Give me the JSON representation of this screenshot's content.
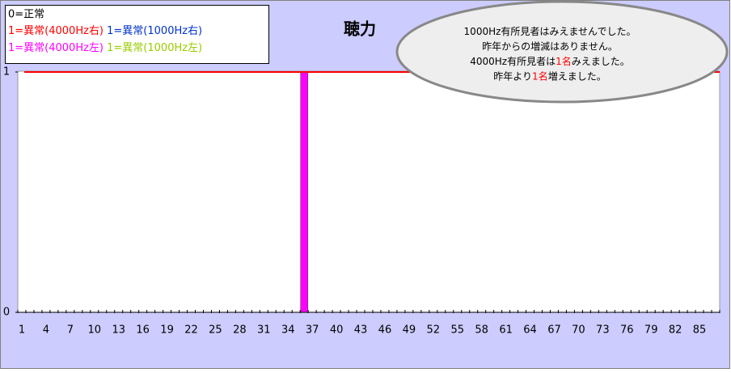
{
  "chart_data": {
    "type": "bar",
    "stacked": true,
    "title": "聴力",
    "legend_note": "0=正常",
    "categories": [
      1,
      null,
      null,
      4,
      null,
      null,
      7,
      null,
      null,
      10,
      null,
      null,
      13,
      null,
      null,
      16,
      null,
      null,
      19,
      null,
      null,
      22,
      null,
      null,
      25,
      null,
      null,
      28,
      null,
      null,
      31,
      null,
      null,
      34,
      null,
      null,
      37,
      null,
      null,
      40,
      null,
      null,
      43,
      null,
      null,
      46,
      null,
      null,
      49,
      null,
      null,
      52,
      null,
      null,
      55,
      null,
      null,
      58,
      null,
      null,
      61,
      null,
      null,
      64,
      null,
      null,
      67,
      null,
      null,
      70,
      null,
      null,
      73,
      null,
      null,
      76,
      null,
      null,
      79,
      null,
      null,
      82,
      null,
      null,
      85,
      null,
      null
    ],
    "series": [
      {
        "name": "1=異常(4000Hz右)",
        "color": "#ff0000",
        "values": [
          0,
          0,
          0,
          0,
          0,
          0,
          0,
          0,
          0,
          0,
          0,
          0,
          0,
          0,
          0,
          0,
          0,
          0,
          0,
          0,
          0,
          0,
          0,
          0,
          0,
          0,
          0,
          0,
          0,
          0,
          0,
          0,
          0,
          0,
          0,
          0,
          0,
          0,
          0,
          0,
          0,
          0,
          0,
          0,
          0,
          0,
          0,
          0,
          0,
          0,
          0,
          0,
          0,
          0,
          0,
          0,
          0,
          0,
          0,
          0,
          0,
          0,
          0,
          0,
          0,
          0,
          0,
          0,
          0,
          0,
          0,
          0,
          0,
          0,
          0,
          0,
          0,
          0,
          0,
          0,
          0,
          0,
          0,
          0,
          0,
          0,
          0
        ]
      },
      {
        "name": "1=異常(1000Hz右)",
        "color": "#0033cc",
        "values": [
          0,
          0,
          0,
          0,
          0,
          0,
          0,
          0,
          0,
          0,
          0,
          0,
          0,
          0,
          0,
          0,
          0,
          0,
          0,
          0,
          0,
          0,
          0,
          0,
          0,
          0,
          0,
          0,
          0,
          0,
          0,
          0,
          0,
          0,
          0,
          0,
          0,
          0,
          0,
          0,
          0,
          0,
          0,
          0,
          0,
          0,
          0,
          0,
          0,
          0,
          0,
          0,
          0,
          0,
          0,
          0,
          0,
          0,
          0,
          0,
          0,
          0,
          0,
          0,
          0,
          0,
          0,
          0,
          0,
          0,
          0,
          0,
          0,
          0,
          0,
          0,
          0,
          0,
          0,
          0,
          0,
          0,
          0,
          0,
          0,
          0,
          0
        ]
      },
      {
        "name": "1=異常(4000Hz左)",
        "color": "#ff00ff",
        "values": [
          0,
          0,
          0,
          0,
          0,
          0,
          0,
          0,
          0,
          0,
          0,
          0,
          0,
          0,
          0,
          0,
          0,
          0,
          0,
          0,
          0,
          0,
          0,
          0,
          0,
          0,
          0,
          0,
          0,
          0,
          0,
          0,
          0,
          0,
          0,
          1,
          0,
          0,
          0,
          0,
          0,
          0,
          0,
          0,
          0,
          0,
          0,
          0,
          0,
          0,
          0,
          0,
          0,
          0,
          0,
          0,
          0,
          0,
          0,
          0,
          0,
          0,
          0,
          0,
          0,
          0,
          0,
          0,
          0,
          0,
          0,
          0,
          0,
          0,
          0,
          0,
          0,
          0,
          0,
          0,
          0,
          0,
          0,
          0,
          0,
          0,
          0
        ]
      },
      {
        "name": "1=異常(1000Hz左)",
        "color": "#99cc00",
        "values": [
          0,
          0,
          0,
          0,
          0,
          0,
          0,
          0,
          0,
          0,
          0,
          0,
          0,
          0,
          0,
          0,
          0,
          0,
          0,
          0,
          0,
          0,
          0,
          0,
          0,
          0,
          0,
          0,
          0,
          0,
          0,
          0,
          0,
          0,
          0,
          0,
          0,
          0,
          0,
          0,
          0,
          0,
          0,
          0,
          0,
          0,
          0,
          0,
          0,
          0,
          0,
          0,
          0,
          0,
          0,
          0,
          0,
          0,
          0,
          0,
          0,
          0,
          0,
          0,
          0,
          0,
          0,
          0,
          0,
          0,
          0,
          0,
          0,
          0,
          0,
          0,
          0,
          0,
          0,
          0,
          0,
          0,
          0,
          0,
          0,
          0,
          0
        ]
      }
    ],
    "ylim": [
      0,
      1
    ],
    "yticks": [
      0,
      1
    ],
    "top_line_color": "#ff0000",
    "annotation": [
      [
        {
          "text": "1000Hz有所見者はみえませんでした。",
          "color": "#000000"
        }
      ],
      [
        {
          "text": "昨年からの増減はありません。",
          "color": "#000000"
        }
      ],
      [
        {
          "text": "4000Hz有所見者は",
          "color": "#000000"
        },
        {
          "text": "1名",
          "color": "#ff0000"
        },
        {
          "text": "みえました。",
          "color": "#000000"
        }
      ],
      [
        {
          "text": "昨年より",
          "color": "#000000"
        },
        {
          "text": "1名",
          "color": "#ff0000"
        },
        {
          "text": "増えました。",
          "color": "#000000"
        }
      ]
    ]
  }
}
